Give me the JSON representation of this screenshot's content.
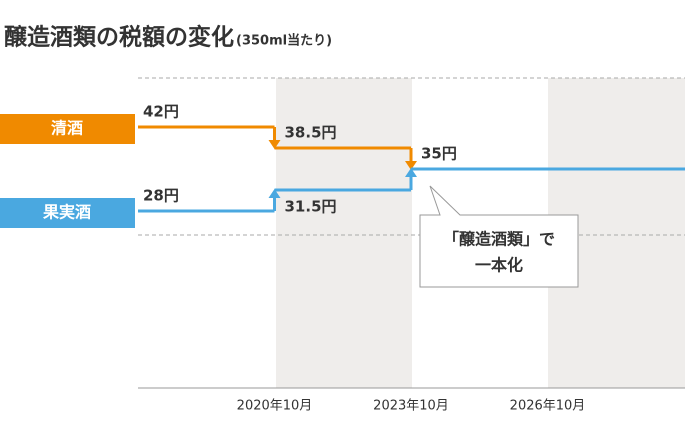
{
  "chart_data": {
    "type": "step",
    "title": "醸造酒類の税額の変化",
    "subtitle": "(350ml当たり)",
    "categories": [
      null,
      "2020年10月",
      "2023年10月",
      "2026年10月"
    ],
    "series": [
      {
        "name": "清酒",
        "color": "#f08a00",
        "values": [
          42,
          38.5,
          35,
          35
        ],
        "value_labels": [
          "42円",
          "38.5円",
          "35円",
          null
        ]
      },
      {
        "name": "果実酒",
        "color": "#4aa8e0",
        "values": [
          28,
          31.5,
          35,
          35
        ],
        "value_labels": [
          "28円",
          "31.5円",
          null,
          null
        ]
      }
    ],
    "annotation": [
      "「醸造酒類」で",
      "一本化"
    ]
  }
}
